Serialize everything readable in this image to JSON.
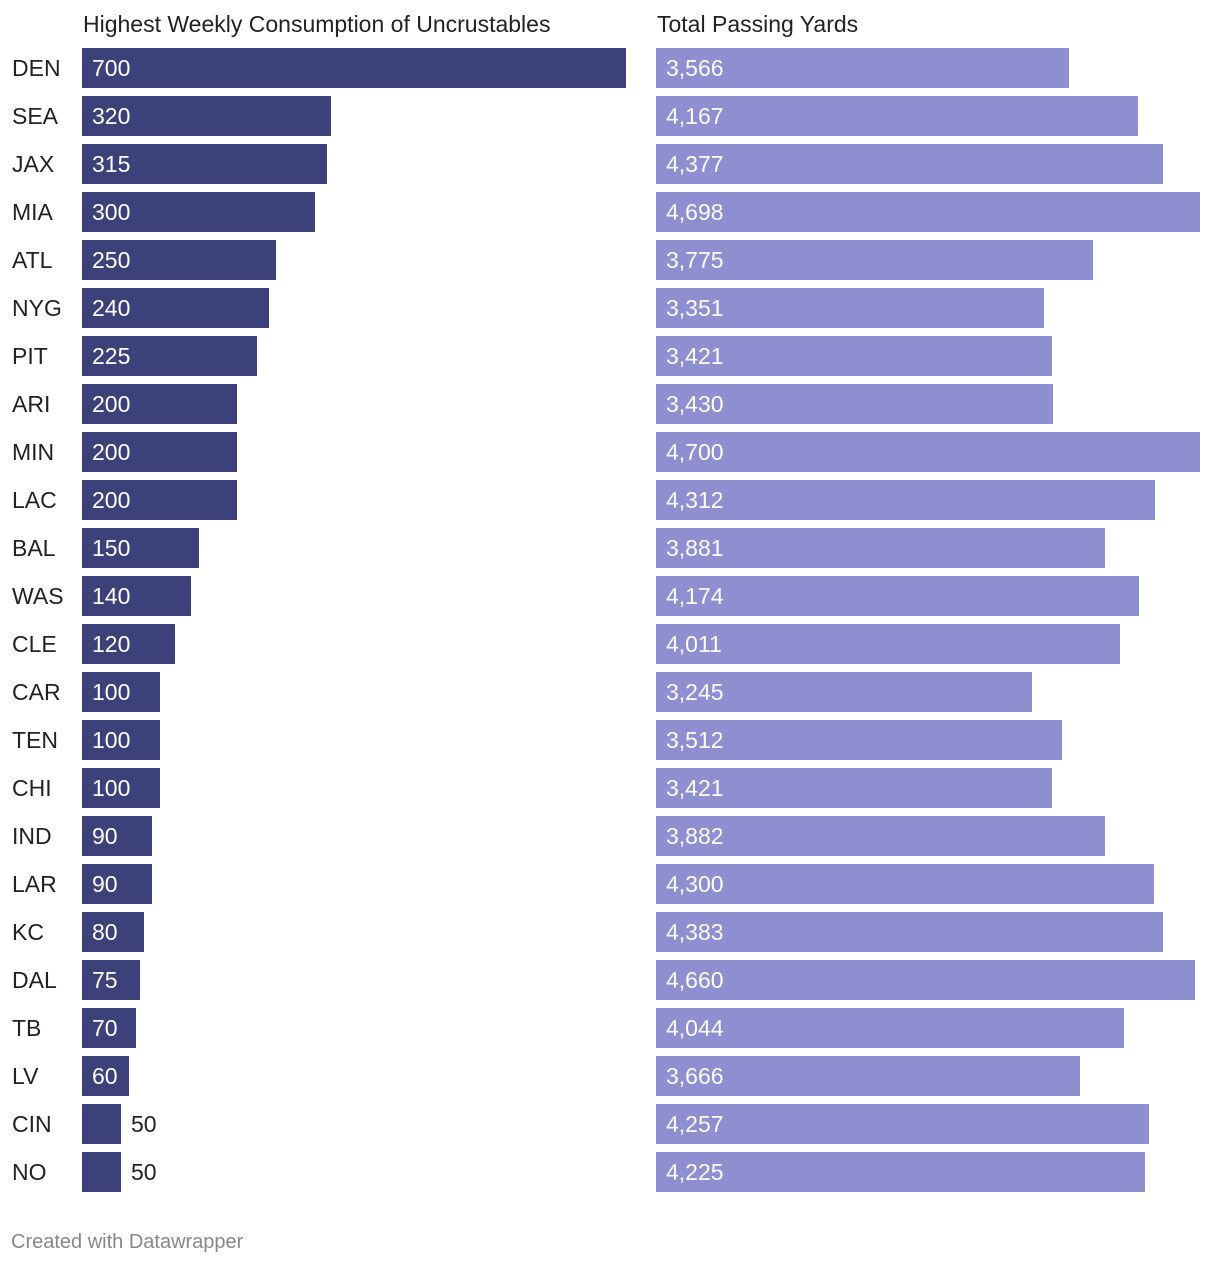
{
  "chart_data": {
    "type": "bar",
    "orientation": "horizontal",
    "categories": [
      "DEN",
      "SEA",
      "JAX",
      "MIA",
      "ATL",
      "NYG",
      "PIT",
      "ARI",
      "MIN",
      "LAC",
      "BAL",
      "WAS",
      "CLE",
      "CAR",
      "TEN",
      "CHI",
      "IND",
      "LAR",
      "KC",
      "DAL",
      "TB",
      "LV",
      "CIN",
      "NO"
    ],
    "series": [
      {
        "name": "Highest Weekly Consumption of Uncrustables",
        "values": [
          700,
          320,
          315,
          300,
          250,
          240,
          225,
          200,
          200,
          200,
          150,
          140,
          120,
          100,
          100,
          100,
          90,
          90,
          80,
          75,
          70,
          60,
          50,
          50
        ],
        "labels": [
          "700",
          "320",
          "315",
          "300",
          "250",
          "240",
          "225",
          "200",
          "200",
          "200",
          "150",
          "140",
          "120",
          "100",
          "100",
          "100",
          "90",
          "90",
          "80",
          "75",
          "70",
          "60",
          "50",
          "50"
        ],
        "color": "#3d417a",
        "xlim": [
          0,
          700
        ]
      },
      {
        "name": "Total Passing Yards",
        "values": [
          3566,
          4167,
          4377,
          4698,
          3775,
          3351,
          3421,
          3430,
          4700,
          4312,
          3881,
          4174,
          4011,
          3245,
          3512,
          3421,
          3882,
          4300,
          4383,
          4660,
          4044,
          3666,
          4257,
          4225
        ],
        "labels": [
          "3,566",
          "4,167",
          "4,377",
          "4,698",
          "3,775",
          "3,351",
          "3,421",
          "3,430",
          "4,700",
          "4,312",
          "3,881",
          "4,174",
          "4,011",
          "3,245",
          "3,512",
          "3,421",
          "3,882",
          "4,300",
          "4,383",
          "4,660",
          "4,044",
          "3,666",
          "4,257",
          "4,225"
        ],
        "color": "#8e8fd0",
        "xlim": [
          0,
          4700
        ]
      }
    ],
    "legend": "none",
    "grid": false
  },
  "footer": {
    "credit": "Created with Datawrapper"
  }
}
